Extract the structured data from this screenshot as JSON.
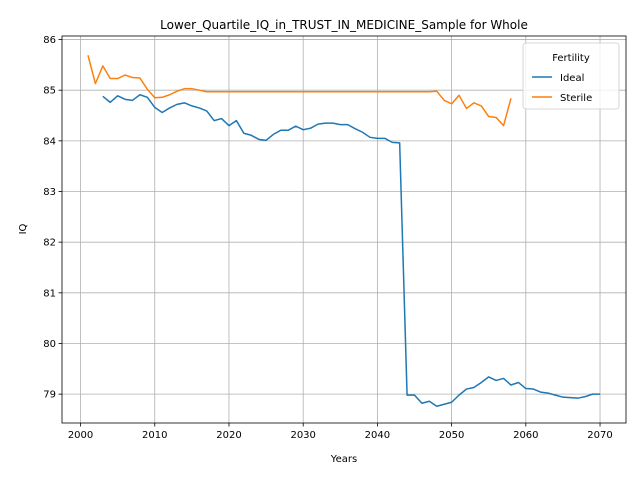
{
  "chart_data": {
    "type": "line",
    "title": "Lower_Quartile_IQ_in_TRUST_IN_MEDICINE_Sample for Whole",
    "xlabel": "Years",
    "ylabel": "IQ",
    "xlim": [
      1997.5,
      2073.5
    ],
    "ylim": [
      78.43,
      86.07
    ],
    "xticks": [
      2000,
      2010,
      2020,
      2030,
      2040,
      2050,
      2060,
      2070
    ],
    "yticks": [
      79,
      80,
      81,
      82,
      83,
      84,
      85,
      86
    ],
    "grid": true,
    "legend": {
      "title": "Fertility",
      "placement": "top-right"
    },
    "series": [
      {
        "name": "Ideal",
        "color": "#1f77b4",
        "x": [
          2003,
          2004,
          2005,
          2006,
          2007,
          2008,
          2009,
          2010,
          2011,
          2012,
          2013,
          2014,
          2015,
          2016,
          2017,
          2018,
          2019,
          2020,
          2021,
          2022,
          2023,
          2024,
          2025,
          2026,
          2027,
          2028,
          2029,
          2030,
          2031,
          2032,
          2033,
          2034,
          2035,
          2036,
          2037,
          2038,
          2039,
          2040,
          2041,
          2042,
          2043,
          2044,
          2045,
          2046,
          2047,
          2048,
          2049,
          2050,
          2051,
          2052,
          2053,
          2054,
          2055,
          2056,
          2057,
          2058,
          2059,
          2060,
          2061,
          2062,
          2063,
          2064,
          2065,
          2066,
          2067,
          2068,
          2069,
          2070
        ],
        "y": [
          84.88,
          84.76,
          84.89,
          84.82,
          84.8,
          84.91,
          84.86,
          84.66,
          84.56,
          84.65,
          84.72,
          84.75,
          84.69,
          84.65,
          84.59,
          84.4,
          84.44,
          84.3,
          84.4,
          84.15,
          84.11,
          84.03,
          84.01,
          84.13,
          84.21,
          84.21,
          84.29,
          84.22,
          84.25,
          84.33,
          84.35,
          84.35,
          84.32,
          84.32,
          84.24,
          84.17,
          84.07,
          84.05,
          84.05,
          83.97,
          83.96,
          78.98,
          78.98,
          78.82,
          78.86,
          78.76,
          78.8,
          78.84,
          78.98,
          79.1,
          79.13,
          79.23,
          79.34,
          79.27,
          79.31,
          79.18,
          79.23,
          79.11,
          79.1,
          79.04,
          79.02,
          78.98,
          78.94,
          78.93,
          78.92,
          78.95,
          79.0,
          79.0
        ]
      },
      {
        "name": "Sterile",
        "color": "#ff7f0e",
        "x": [
          2001,
          2002,
          2003,
          2004,
          2005,
          2006,
          2007,
          2008,
          2009,
          2010,
          2011,
          2012,
          2013,
          2014,
          2015,
          2016,
          2017,
          2018,
          2019,
          2020,
          2021,
          2022,
          2023,
          2024,
          2025,
          2026,
          2027,
          2028,
          2029,
          2030,
          2031,
          2032,
          2033,
          2034,
          2035,
          2036,
          2037,
          2038,
          2039,
          2040,
          2041,
          2042,
          2043,
          2044,
          2045,
          2046,
          2047,
          2048,
          2049,
          2050,
          2051,
          2052,
          2053,
          2054,
          2055,
          2056,
          2057,
          2058
        ],
        "y": [
          85.69,
          85.13,
          85.48,
          85.23,
          85.23,
          85.3,
          85.25,
          85.24,
          85.02,
          84.85,
          84.86,
          84.91,
          84.98,
          85.03,
          85.03,
          85.0,
          84.97,
          84.97,
          84.97,
          84.97,
          84.97,
          84.97,
          84.97,
          84.97,
          84.97,
          84.97,
          84.97,
          84.97,
          84.97,
          84.97,
          84.97,
          84.97,
          84.97,
          84.97,
          84.97,
          84.97,
          84.97,
          84.97,
          84.97,
          84.97,
          84.97,
          84.97,
          84.97,
          84.97,
          84.97,
          84.97,
          84.97,
          84.98,
          84.8,
          84.73,
          84.9,
          84.64,
          84.75,
          84.69,
          84.48,
          84.46,
          84.3,
          84.84
        ]
      }
    ]
  }
}
